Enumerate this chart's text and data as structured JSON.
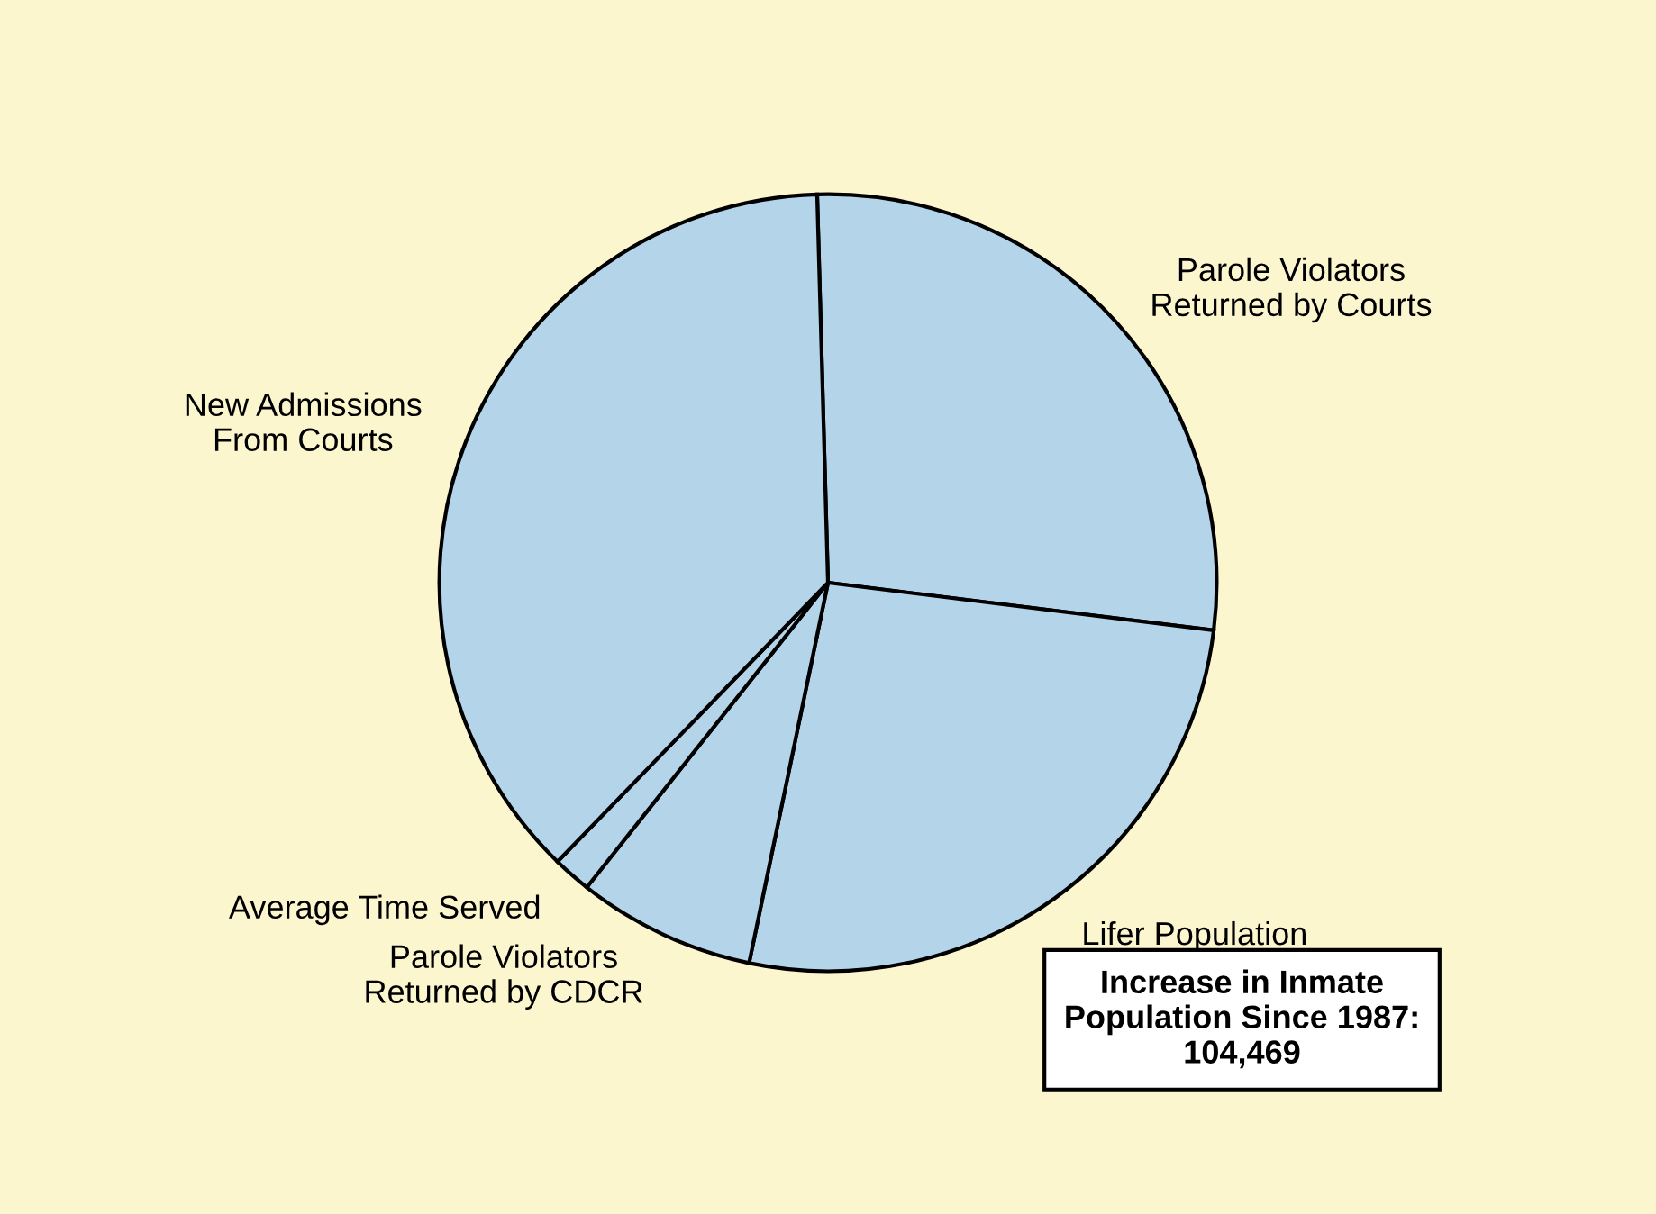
{
  "chart_data": {
    "type": "pie",
    "categories": [
      "Parole Violators\nReturned by Courts",
      "Lifer Population",
      "Parole Violators\nReturned by CDCR",
      "Average Time Served",
      "New Admissions\nFrom Courts"
    ],
    "values": [
      27.4,
      26.3,
      7.4,
      1.6,
      37.3
    ],
    "colors": [
      "#b4d4ea",
      "#b4d4ea",
      "#b4d4ea",
      "#b4d4ea",
      "#b4d4ea"
    ],
    "annotations": [
      "Increase in Inmate\nPopulation Since 1987:\n104,469"
    ],
    "legend": false
  }
}
